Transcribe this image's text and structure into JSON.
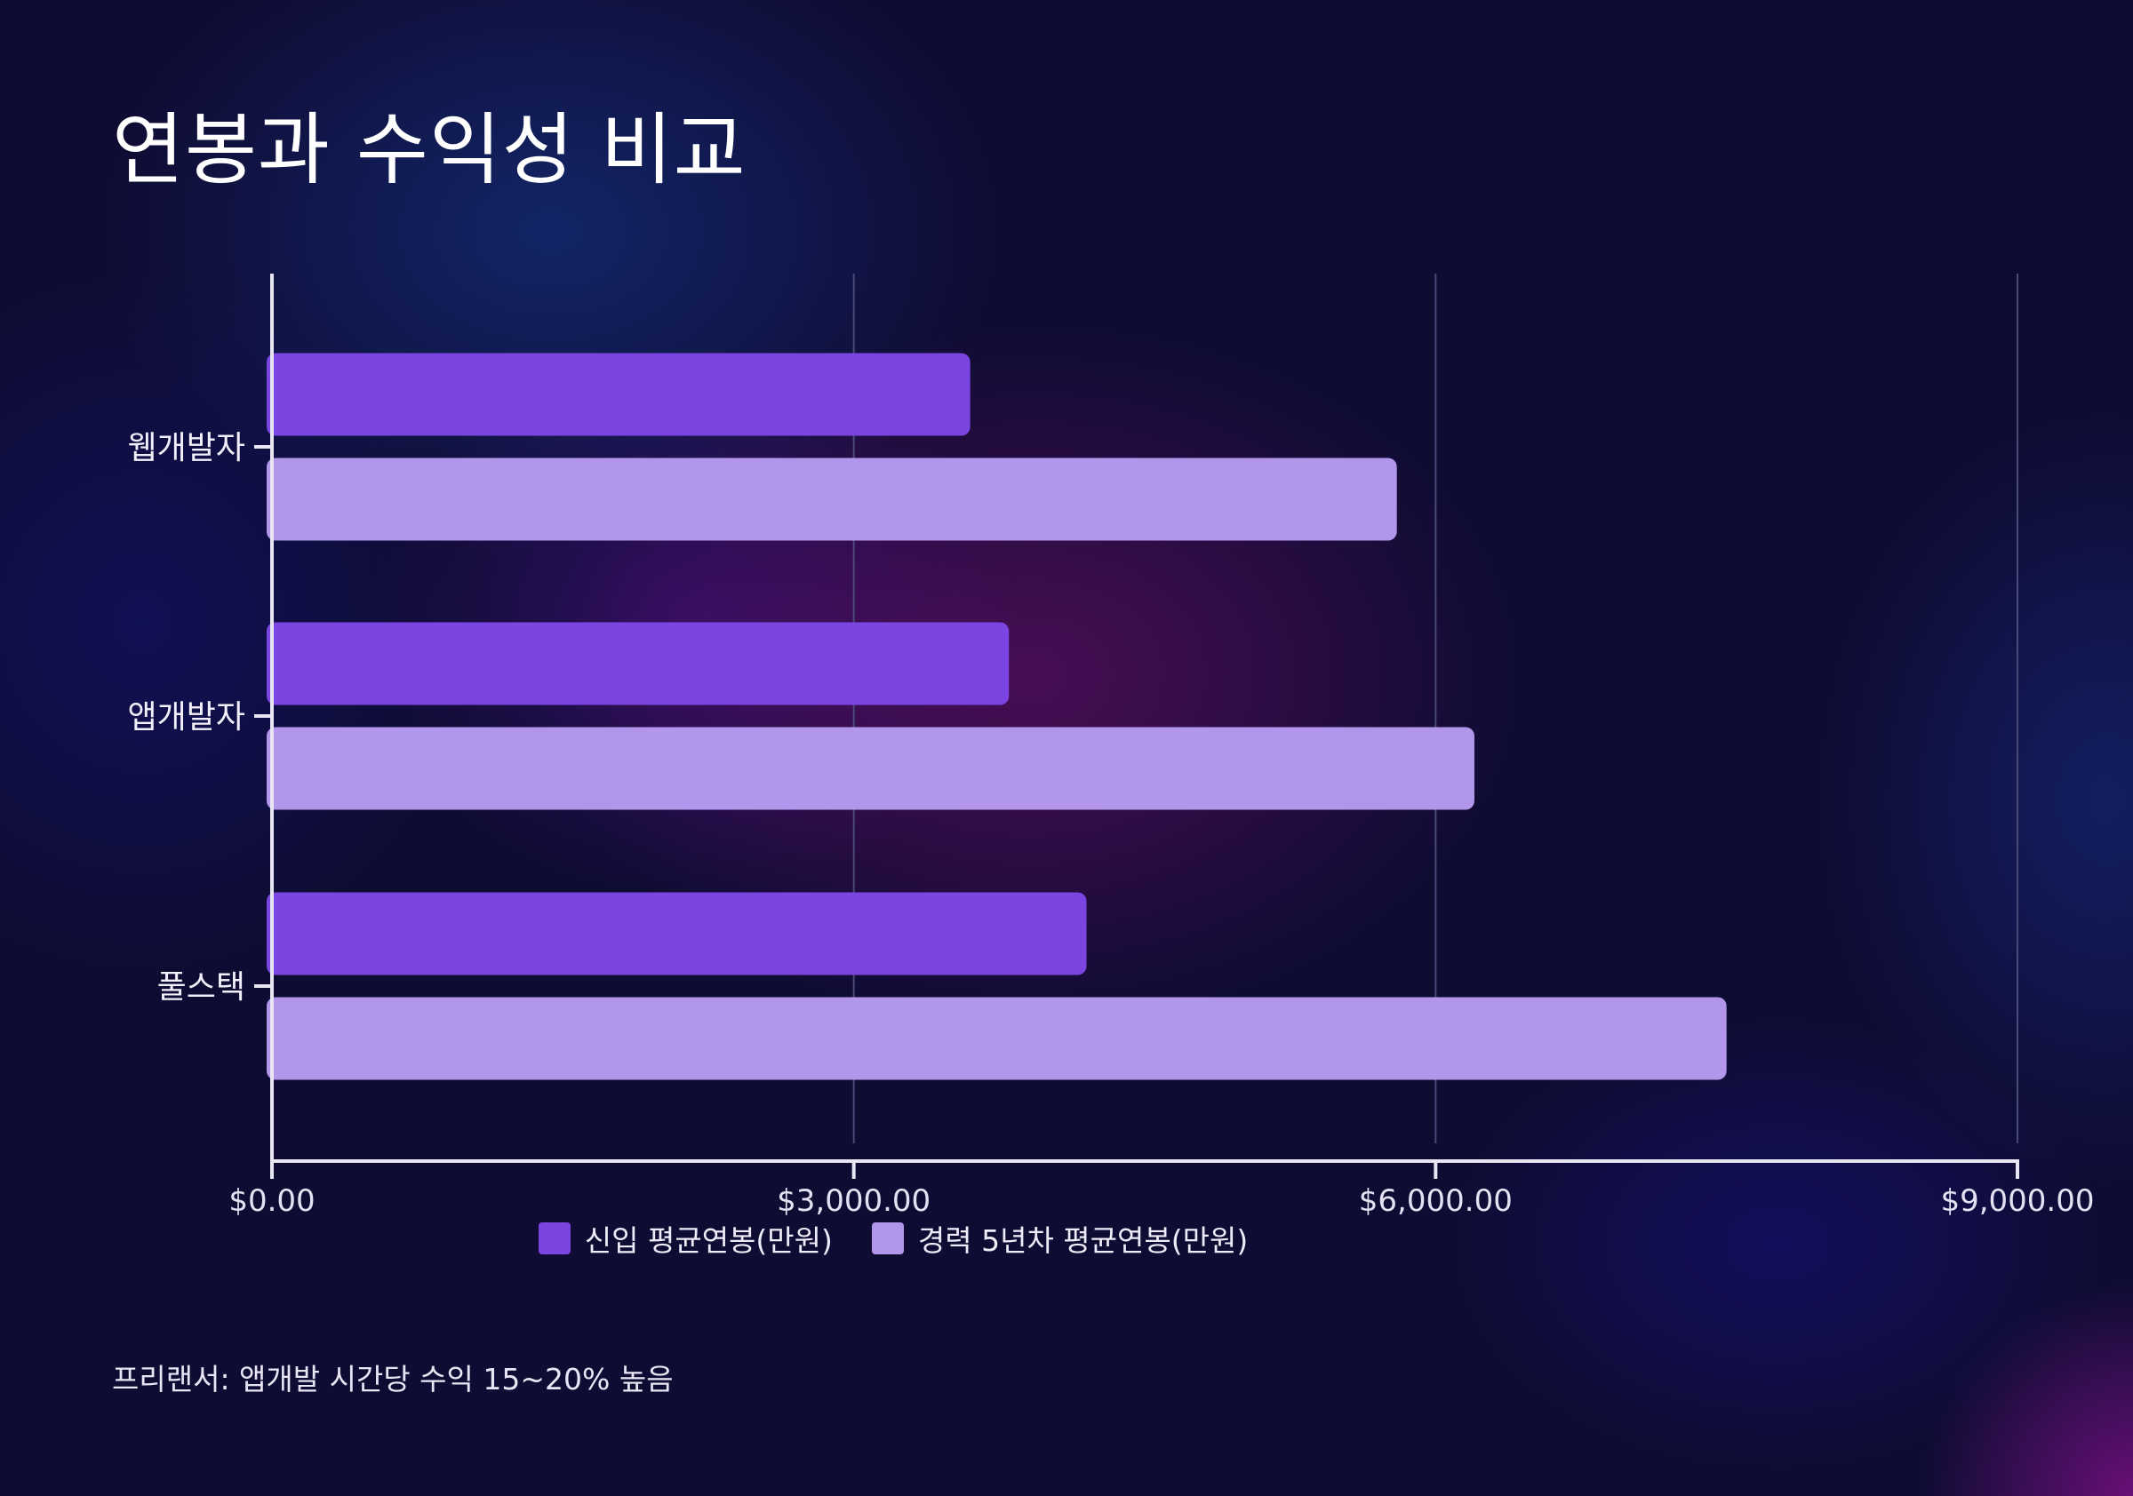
{
  "page": {
    "title": "연봉과 수익성 비교",
    "footnote": "프리랜서: 앱개발 시간당 수익 15~20% 높음"
  },
  "colors": {
    "series_1": "#7a45e0",
    "series_2": "#b296ec",
    "axis": "#e8e6f2",
    "grid": "#4a4a78"
  },
  "chart_data": {
    "type": "bar",
    "orientation": "horizontal",
    "title": "연봉과 수익성 비교",
    "xlabel": "",
    "ylabel": "",
    "categories": [
      "웹개발자",
      "앱개발자",
      "풀스택"
    ],
    "series": [
      {
        "name": "신입 평균연봉(만원)",
        "values": [
          3600,
          3800,
          4200
        ]
      },
      {
        "name": "경력 5년차 평균연봉(만원)",
        "values": [
          5800,
          6200,
          7500
        ]
      }
    ],
    "xlim": [
      0,
      9000
    ],
    "xticks": [
      0,
      3000,
      6000,
      9000
    ],
    "xtick_labels": [
      "$0.00",
      "$3,000.00",
      "$6,000.00",
      "$9,000.00"
    ],
    "grid": "vertical",
    "legend_position": "bottom-center"
  }
}
